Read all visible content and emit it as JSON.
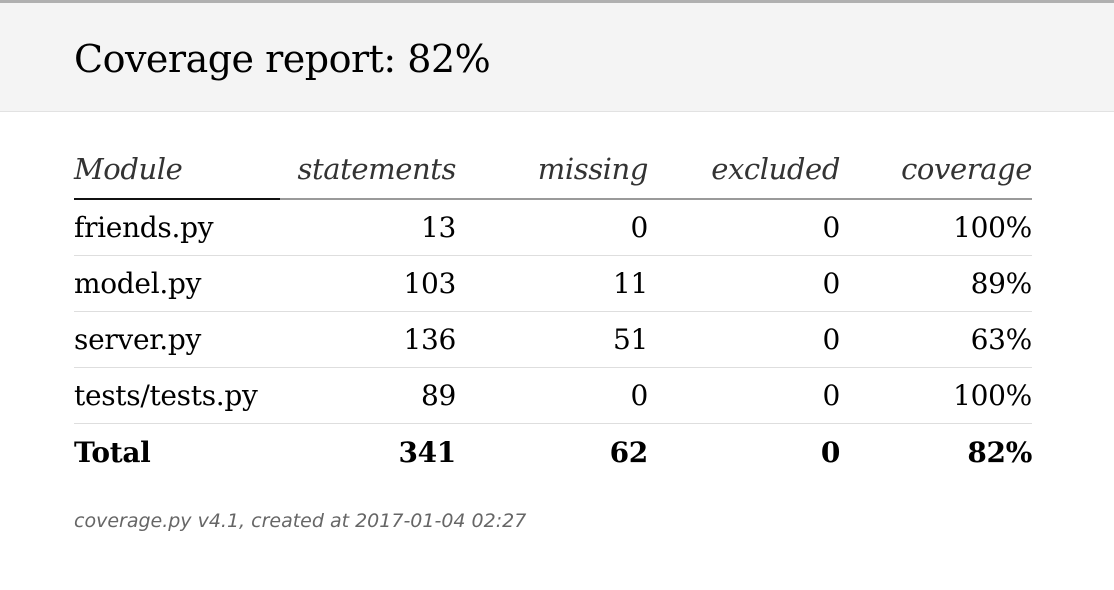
{
  "header": {
    "title": "Coverage report: 82%"
  },
  "table": {
    "columns": [
      "Module",
      "statements",
      "missing",
      "excluded",
      "coverage"
    ],
    "rows": [
      {
        "module": "friends.py",
        "statements": "13",
        "missing": "0",
        "excluded": "0",
        "coverage": "100%"
      },
      {
        "module": "model.py",
        "statements": "103",
        "missing": "11",
        "excluded": "0",
        "coverage": "89%"
      },
      {
        "module": "server.py",
        "statements": "136",
        "missing": "51",
        "excluded": "0",
        "coverage": "63%"
      },
      {
        "module": "tests/tests.py",
        "statements": "89",
        "missing": "0",
        "excluded": "0",
        "coverage": "100%"
      }
    ],
    "total": {
      "module": "Total",
      "statements": "341",
      "missing": "62",
      "excluded": "0",
      "coverage": "82%"
    }
  },
  "footer": {
    "text": "coverage.py v4.1, created at 2017-01-04 02:27"
  }
}
